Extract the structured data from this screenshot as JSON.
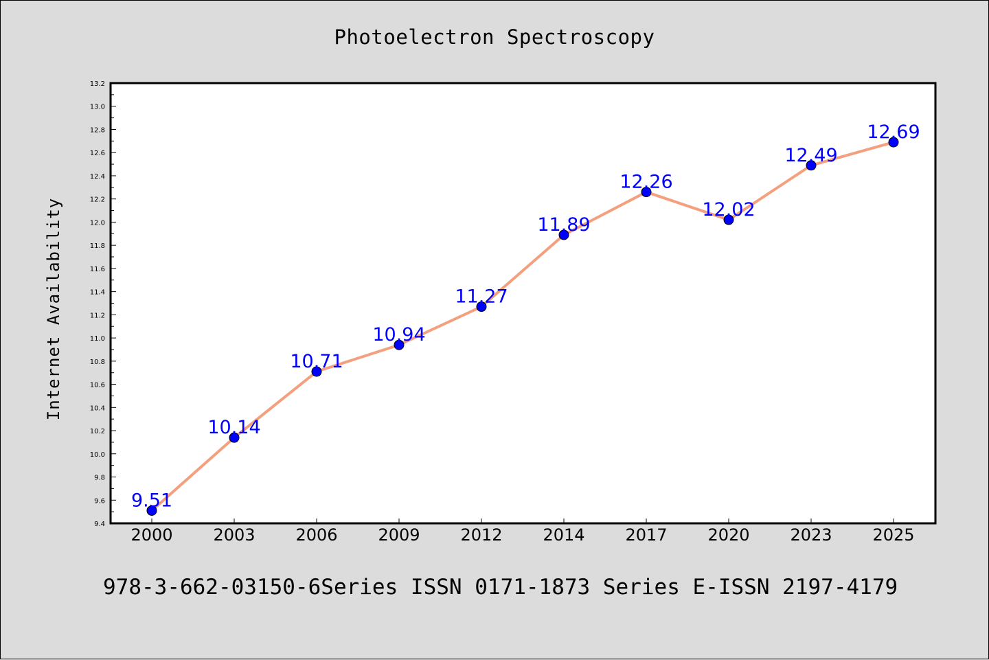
{
  "chart_data": {
    "type": "line",
    "title": "Photoelectron Spectroscopy",
    "ylabel": "Internet Availability",
    "xlabel": "",
    "footer": "978-3-662-03150-6Series ISSN 0171-1873 Series E-ISSN 2197-4179",
    "categories": [
      "2000",
      "2003",
      "2006",
      "2009",
      "2012",
      "2014",
      "2017",
      "2020",
      "2023",
      "2025"
    ],
    "series": [
      {
        "values": [
          9.51,
          10.14,
          10.71,
          10.94,
          11.27,
          11.89,
          12.26,
          12.02,
          12.49,
          12.69
        ],
        "line_color": "#f4a07e",
        "marker_color": "#0000ff"
      }
    ],
    "data_labels": [
      "9.51",
      "10.14",
      "10.71",
      "10.94",
      "11.27",
      "11.89",
      "12.26",
      "12.02",
      "12.49",
      "12.69"
    ],
    "yticks": [
      "9.4",
      "9.6",
      "9.8",
      "10.0",
      "10.2",
      "10.4",
      "10.6",
      "10.8",
      "11.0",
      "11.2",
      "11.4",
      "11.6",
      "11.8",
      "12.0",
      "12.2",
      "12.4",
      "12.6",
      "12.8",
      "13.0",
      "13.2"
    ],
    "ylim": [
      9.4,
      13.2
    ],
    "grid": false,
    "background": "#dcdcdc",
    "plot_background": "#ffffff"
  }
}
